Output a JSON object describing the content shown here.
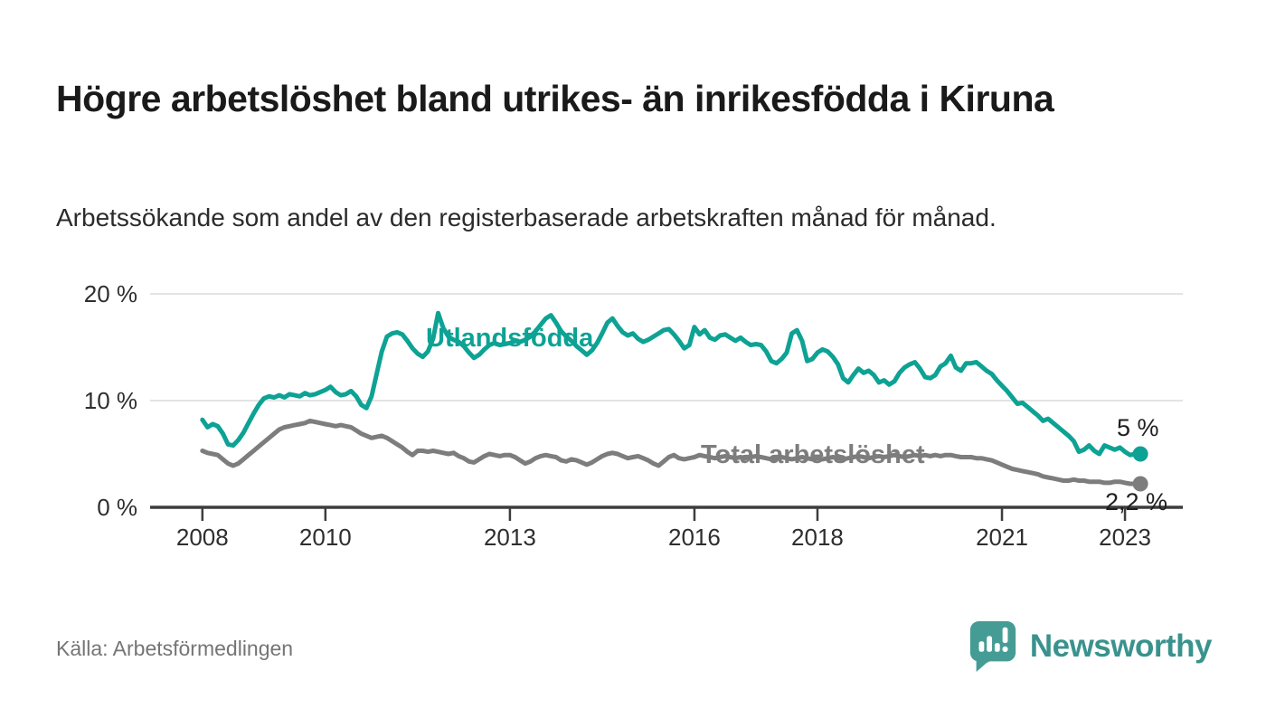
{
  "header": {
    "title": "Högre arbetslöshet bland utrikes- än inrikesfödda i Kiruna",
    "subtitle": "Arbetssökande som andel av den registerbaserade arbetskraften månad för månad."
  },
  "footer": {
    "source": "Källa: Arbetsförmedlingen",
    "brand": "Newsworthy"
  },
  "colors": {
    "series_utlandsfodda": "#0da294",
    "series_total": "#7d7d7d",
    "axis": "#3d3d3d",
    "grid": "#dbdbdb",
    "tick_label": "#2e2e2e",
    "value_label": "#1f1f1f",
    "logo_bubble": "#459c95",
    "brand_text": "#3a928e",
    "background": "#ffffff"
  },
  "chart_data": {
    "type": "line",
    "title": "Högre arbetslöshet bland utrikes- än inrikesfödda i Kiruna",
    "xlabel": "",
    "ylabel": "",
    "unit": "%",
    "frequency": "monthly",
    "x_start": {
      "year": 2008,
      "month": 1
    },
    "x_end": {
      "year": 2023,
      "month": 4
    },
    "xlim": [
      2007.15,
      2023.94
    ],
    "ylim": [
      0,
      20
    ],
    "grid": "horizontal",
    "legend_position": "inline-annotations",
    "yticks": [
      {
        "value": 0,
        "label": "0 %"
      },
      {
        "value": 10,
        "label": "10 %"
      },
      {
        "value": 20,
        "label": "20 %"
      }
    ],
    "xticks": [
      {
        "value": 2008,
        "label": "2008"
      },
      {
        "value": 2010,
        "label": "2010"
      },
      {
        "value": 2013,
        "label": "2013"
      },
      {
        "value": 2016,
        "label": "2016"
      },
      {
        "value": 2018,
        "label": "2018"
      },
      {
        "value": 2021,
        "label": "2021"
      },
      {
        "value": 2023,
        "label": "2023"
      }
    ],
    "series": [
      {
        "name": "Utlandsfödda",
        "color": "#0da294",
        "end_label": "5 %",
        "end_value": 5.0,
        "values": [
          8.2,
          7.5,
          7.8,
          7.6,
          6.9,
          5.9,
          5.8,
          6.3,
          7.0,
          7.9,
          8.8,
          9.6,
          10.2,
          10.4,
          10.3,
          10.5,
          10.3,
          10.6,
          10.5,
          10.4,
          10.7,
          10.5,
          10.6,
          10.8,
          11.0,
          11.3,
          10.8,
          10.5,
          10.6,
          10.9,
          10.4,
          9.6,
          9.3,
          10.4,
          12.5,
          14.6,
          16.0,
          16.3,
          16.4,
          16.2,
          15.6,
          14.9,
          14.4,
          14.1,
          14.6,
          15.8,
          18.2,
          16.8,
          16.0,
          15.7,
          15.5,
          15.1,
          14.5,
          14.0,
          14.3,
          14.8,
          15.2,
          15.4,
          15.2,
          15.3,
          15.4,
          15.6,
          15.5,
          15.7,
          16.0,
          16.5,
          17.1,
          17.7,
          18.0,
          17.3,
          16.5,
          16.0,
          15.6,
          15.1,
          14.7,
          14.3,
          14.7,
          15.4,
          16.3,
          17.3,
          17.7,
          17.0,
          16.4,
          16.1,
          16.3,
          15.8,
          15.5,
          15.7,
          16.0,
          16.3,
          16.6,
          16.7,
          16.2,
          15.6,
          14.9,
          15.2,
          16.9,
          16.2,
          16.6,
          15.9,
          15.7,
          16.1,
          16.2,
          15.9,
          15.6,
          15.9,
          15.5,
          15.2,
          15.3,
          15.2,
          14.6,
          13.7,
          13.5,
          13.9,
          14.5,
          16.3,
          16.6,
          15.6,
          13.7,
          13.9,
          14.5,
          14.8,
          14.6,
          14.1,
          13.4,
          12.1,
          11.7,
          12.4,
          13.0,
          12.6,
          12.8,
          12.4,
          11.7,
          11.9,
          11.5,
          11.8,
          12.6,
          13.1,
          13.4,
          13.6,
          13.0,
          12.2,
          12.1,
          12.4,
          13.2,
          13.5,
          14.2,
          13.1,
          12.8,
          13.5,
          13.5,
          13.6,
          13.2,
          12.8,
          12.5,
          11.9,
          11.4,
          10.9,
          10.3,
          9.7,
          9.8,
          9.4,
          9.0,
          8.6,
          8.1,
          8.3,
          7.9,
          7.5,
          7.1,
          6.7,
          6.2,
          5.2,
          5.4,
          5.8,
          5.3,
          5.0,
          5.8,
          5.6,
          5.4,
          5.6,
          5.2,
          4.9,
          5.0,
          5.0
        ]
      },
      {
        "name": "Total arbetslöshet",
        "color": "#7d7d7d",
        "end_label": "2,2 %",
        "end_value": 2.2,
        "values": [
          5.3,
          5.1,
          5.0,
          4.9,
          4.5,
          4.1,
          3.9,
          4.1,
          4.5,
          4.9,
          5.3,
          5.7,
          6.1,
          6.5,
          6.9,
          7.3,
          7.5,
          7.6,
          7.7,
          7.8,
          7.9,
          8.1,
          8.0,
          7.9,
          7.8,
          7.7,
          7.6,
          7.7,
          7.6,
          7.5,
          7.2,
          6.9,
          6.7,
          6.5,
          6.6,
          6.7,
          6.5,
          6.2,
          5.9,
          5.6,
          5.2,
          4.9,
          5.3,
          5.3,
          5.2,
          5.3,
          5.2,
          5.1,
          5.0,
          5.1,
          4.8,
          4.6,
          4.3,
          4.2,
          4.5,
          4.8,
          5.0,
          4.9,
          4.8,
          4.9,
          4.9,
          4.7,
          4.4,
          4.1,
          4.3,
          4.6,
          4.8,
          4.9,
          4.8,
          4.7,
          4.4,
          4.3,
          4.5,
          4.4,
          4.2,
          4.0,
          4.2,
          4.5,
          4.8,
          5.0,
          5.1,
          5.0,
          4.8,
          4.6,
          4.7,
          4.8,
          4.6,
          4.4,
          4.1,
          3.9,
          4.3,
          4.7,
          4.9,
          4.6,
          4.5,
          4.6,
          4.7,
          4.9,
          4.8,
          4.7,
          4.6,
          4.7,
          4.8,
          4.7,
          4.6,
          4.7,
          4.6,
          4.7,
          4.8,
          4.7,
          4.6,
          4.5,
          4.6,
          4.7,
          4.6,
          4.5,
          4.6,
          4.7,
          4.6,
          4.5,
          4.6,
          4.5,
          4.6,
          4.7,
          4.6,
          4.5,
          4.6,
          4.7,
          4.8,
          4.7,
          4.6,
          4.7,
          4.8,
          4.7,
          4.8,
          4.9,
          4.8,
          4.7,
          4.8,
          4.9,
          4.8,
          4.9,
          4.8,
          4.9,
          4.8,
          4.9,
          4.9,
          4.8,
          4.7,
          4.7,
          4.7,
          4.6,
          4.6,
          4.5,
          4.4,
          4.2,
          4.0,
          3.8,
          3.6,
          3.5,
          3.4,
          3.3,
          3.2,
          3.1,
          2.9,
          2.8,
          2.7,
          2.6,
          2.5,
          2.5,
          2.6,
          2.5,
          2.5,
          2.4,
          2.4,
          2.4,
          2.3,
          2.3,
          2.4,
          2.4,
          2.3,
          2.2,
          2.2,
          2.2
        ]
      }
    ]
  }
}
